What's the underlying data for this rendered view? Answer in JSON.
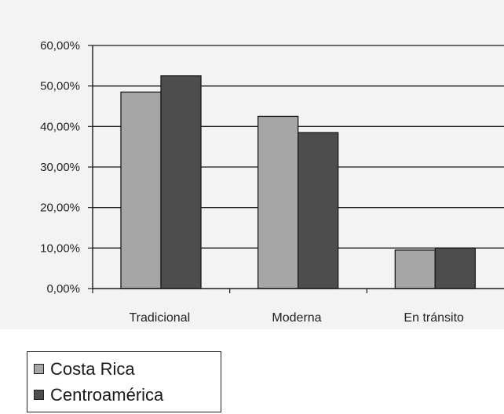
{
  "chart_data": {
    "type": "bar",
    "title": "",
    "xlabel": "",
    "ylabel": "",
    "categories": [
      "Tradicional",
      "Moderna",
      "En tránsito"
    ],
    "series": [
      {
        "name": "Costa Rica",
        "values": [
          48.5,
          42.5,
          9.5
        ],
        "color": "#a6a6a6"
      },
      {
        "name": "Centroamérica",
        "values": [
          52.5,
          38.5,
          10.0
        ],
        "color": "#4d4d4d"
      }
    ],
    "ylim": [
      0,
      60
    ],
    "yticks": [
      0,
      10,
      20,
      30,
      40,
      50,
      60
    ],
    "ytick_labels": [
      "0,00%",
      "10,00%",
      "20,00%",
      "30,00%",
      "40,00%",
      "50,00%",
      "60,00%"
    ],
    "grid": true,
    "legend_position": "bottom-left"
  },
  "legend": {
    "items": [
      {
        "label": "Costa Rica",
        "color": "#a6a6a6"
      },
      {
        "label": "Centroamérica",
        "color": "#4d4d4d"
      }
    ]
  }
}
